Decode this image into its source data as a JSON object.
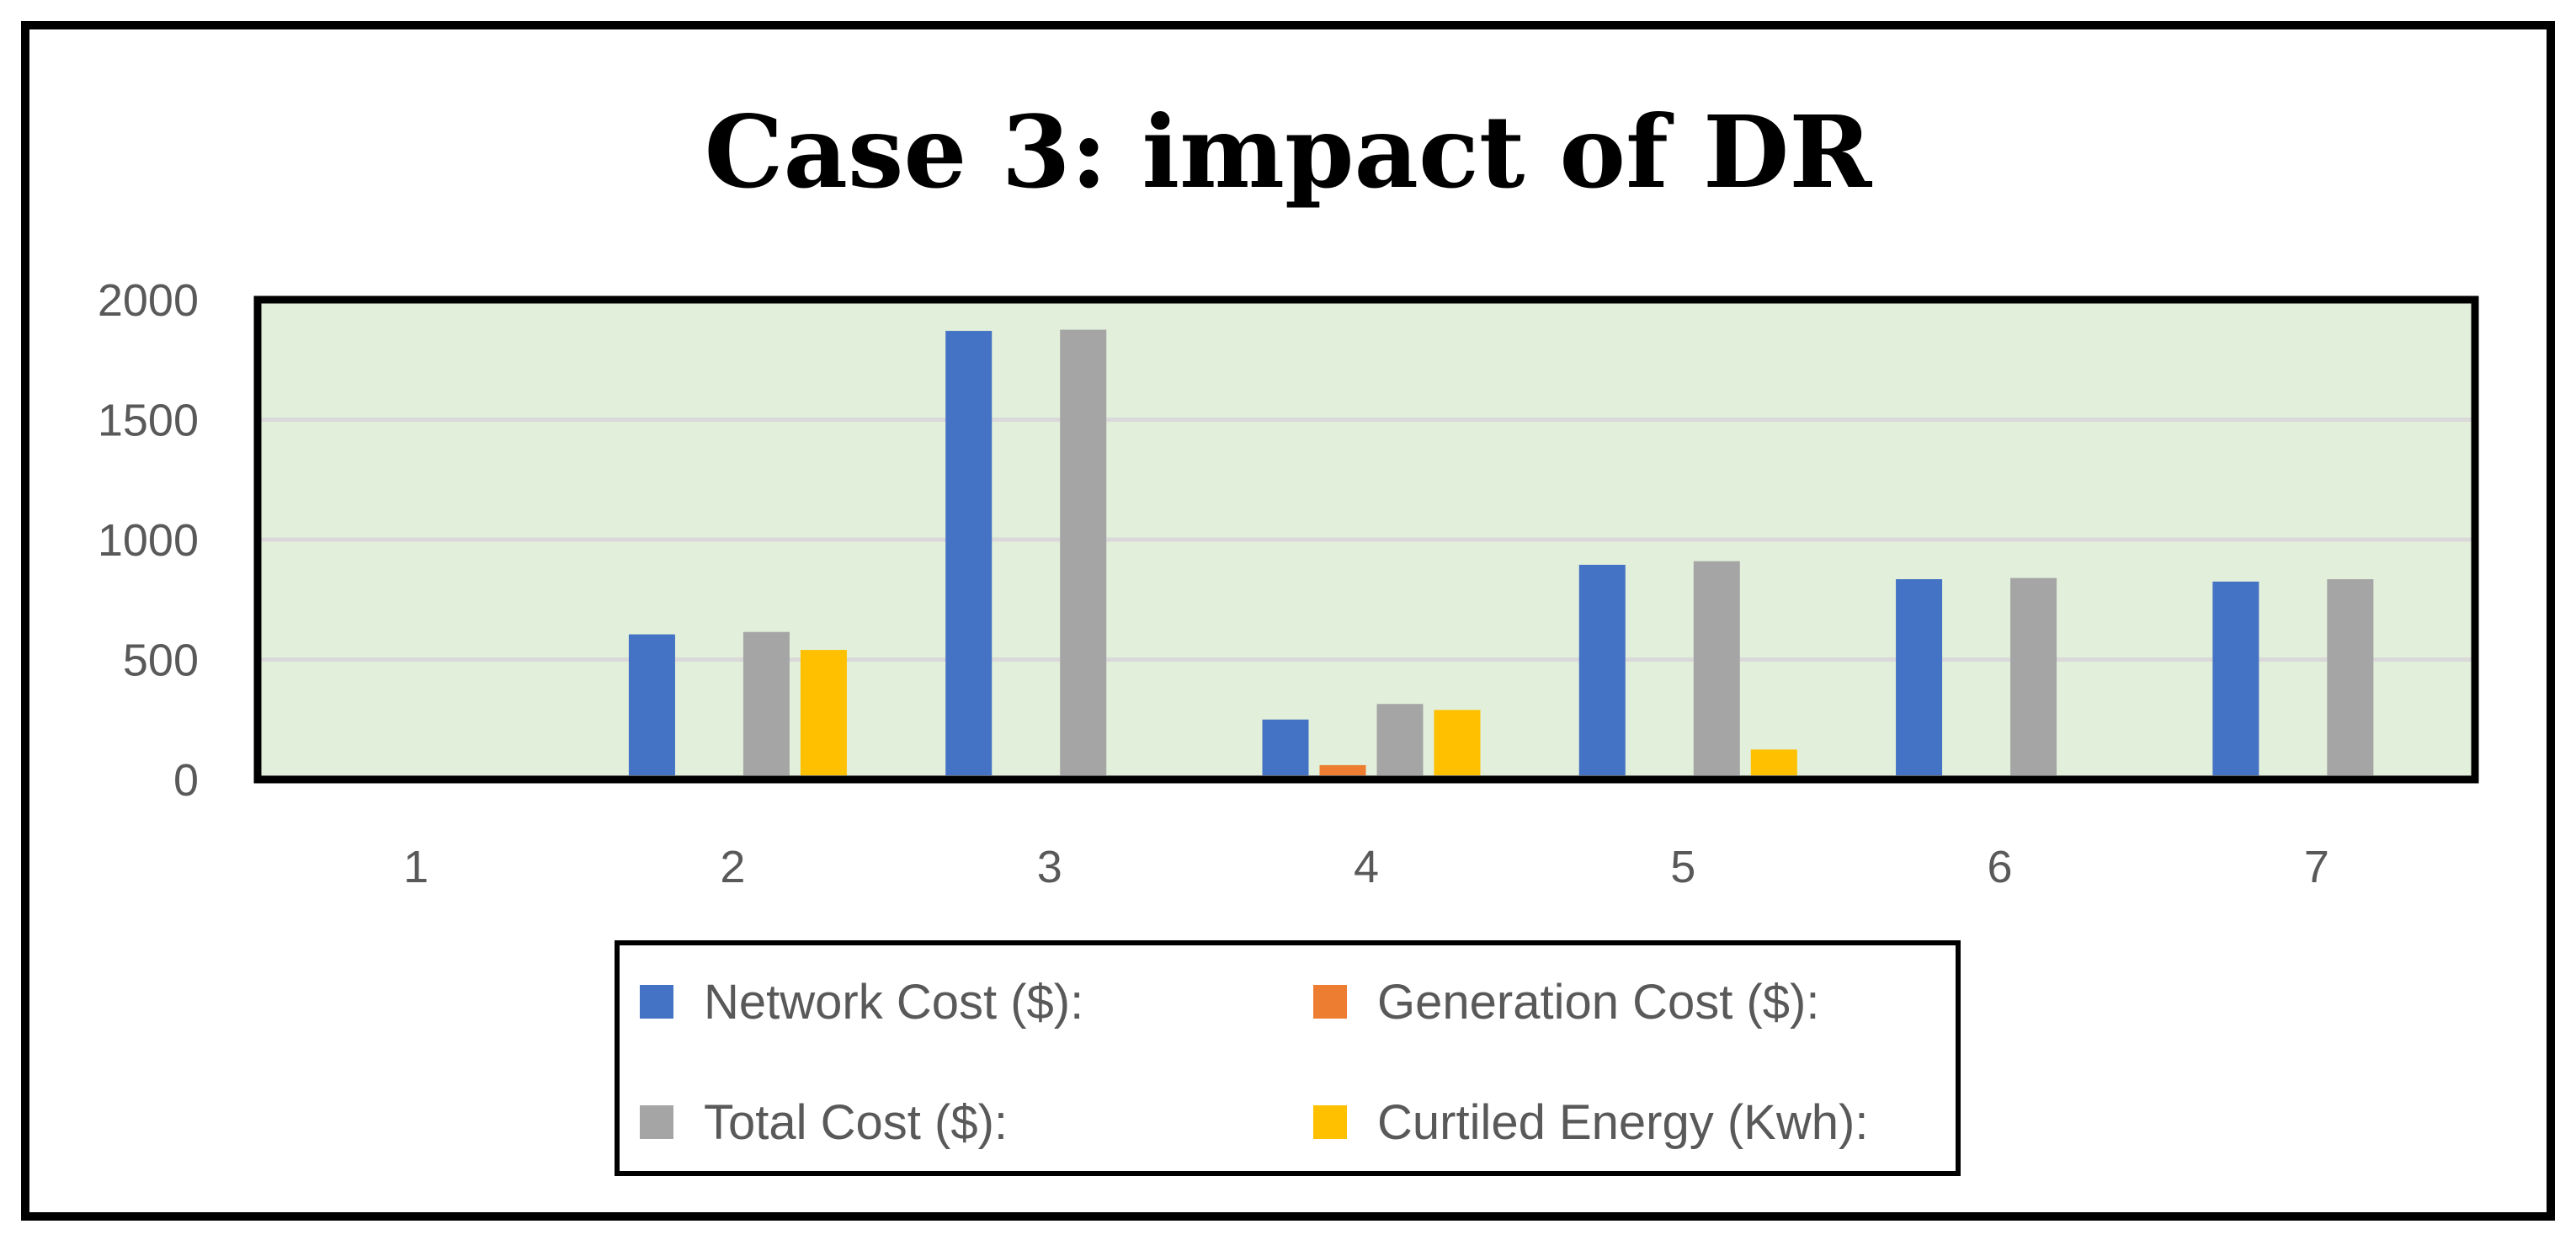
{
  "chart_data": {
    "type": "bar",
    "title": "Case 3: impact of DR",
    "xlabel": "",
    "ylabel": "",
    "categories": [
      "1",
      "2",
      "3",
      "4",
      "5",
      "6",
      "7"
    ],
    "ylim": [
      0,
      2000
    ],
    "yticks": [
      0,
      500,
      1000,
      1500,
      2000
    ],
    "grid": true,
    "legend_position": "bottom",
    "series": [
      {
        "name": "Network Cost ($):",
        "color": "#4472C4",
        "values": [
          0,
          605,
          1870,
          250,
          895,
          835,
          825
        ]
      },
      {
        "name": "Generation Cost ($):",
        "color": "#ED7D31",
        "values": [
          0,
          8,
          0,
          60,
          8,
          0,
          0
        ]
      },
      {
        "name": "Total Cost ($):",
        "color": "#A5A5A5",
        "values": [
          0,
          615,
          1875,
          315,
          910,
          840,
          835
        ]
      },
      {
        "name": "Curtiled Energy (Kwh):",
        "color": "#FFC000",
        "values": [
          0,
          540,
          0,
          290,
          125,
          0,
          0
        ]
      }
    ],
    "plot_background": "#E2EFDA",
    "gridline_color": "#D9D9D9"
  }
}
